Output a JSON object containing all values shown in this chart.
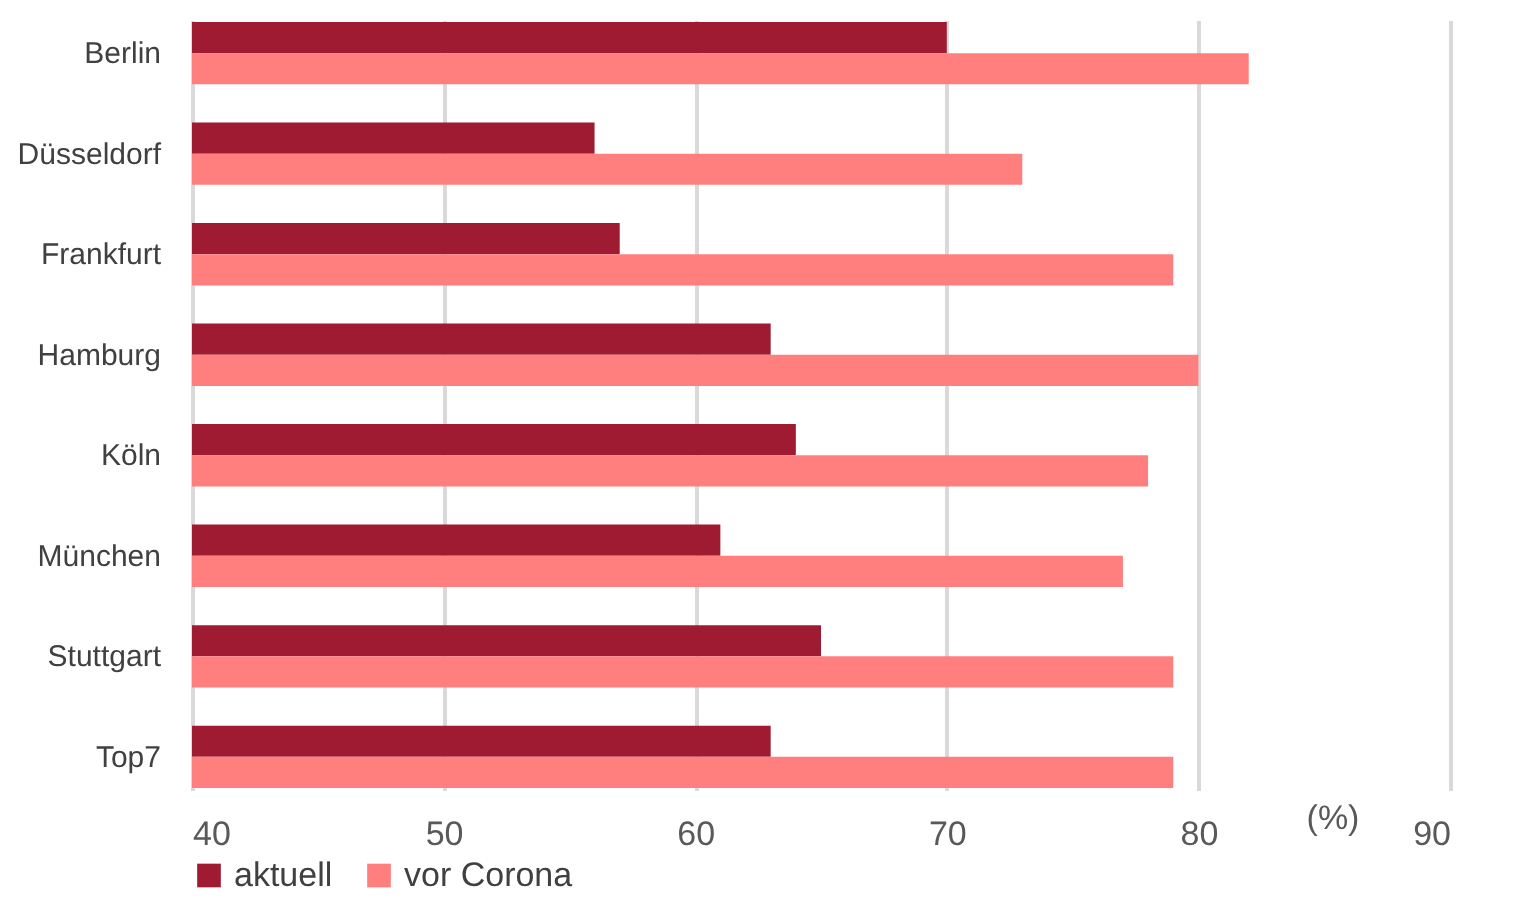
{
  "chart_data": {
    "type": "bar",
    "orientation": "horizontal",
    "xlabel": "(%)",
    "categories": [
      "Berlin",
      "Düsseldorf",
      "Frankfurt",
      "Hamburg",
      "Köln",
      "München",
      "Stuttgart",
      "Top7"
    ],
    "series": [
      {
        "name": "aktuell",
        "color": "#9e1b32",
        "values": [
          70,
          56,
          57,
          63,
          64,
          61,
          65,
          63
        ]
      },
      {
        "name": "vor Corona",
        "color": "#ff7f7f",
        "values": [
          82,
          73,
          79,
          80,
          78,
          77,
          79,
          79
        ]
      }
    ],
    "xlim": [
      40,
      90
    ],
    "xticks": [
      40,
      50,
      60,
      70,
      80,
      90
    ],
    "grid": "x",
    "legend": "bottom"
  }
}
